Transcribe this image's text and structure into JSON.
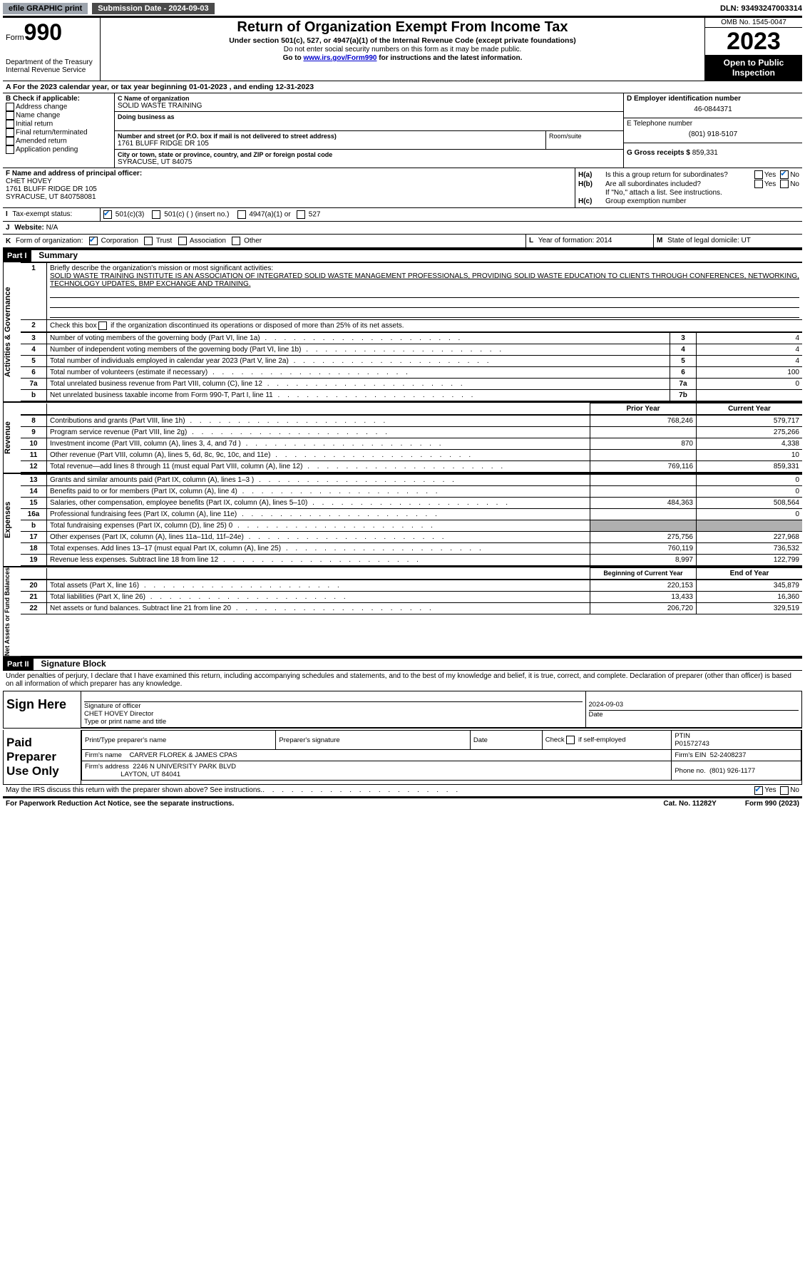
{
  "top": {
    "efile": "efile GRAPHIC print",
    "submission_label": "Submission Date - 2024-09-03",
    "dln": "DLN: 93493247003314"
  },
  "header": {
    "form_word": "Form",
    "form_num": "990",
    "dept": "Department of the Treasury",
    "irs": "Internal Revenue Service",
    "title": "Return of Organization Exempt From Income Tax",
    "sub": "Under section 501(c), 527, or 4947(a)(1) of the Internal Revenue Code (except private foundations)",
    "note1": "Do not enter social security numbers on this form as it may be made public.",
    "note2_pre": "Go to ",
    "note2_link": "www.irs.gov/Form990",
    "note2_post": " for instructions and the latest information.",
    "omb": "OMB No. 1545-0047",
    "year": "2023",
    "open": "Open to Public Inspection"
  },
  "line_a": "A  For the 2023 calendar year, or tax year beginning 01-01-2023   , and ending 12-31-2023",
  "box_b": {
    "label": "B Check if applicable:",
    "items": [
      "Address change",
      "Name change",
      "Initial return",
      "Final return/terminated",
      "Amended return",
      "Application pending"
    ]
  },
  "box_c": {
    "name_label": "C Name of organization",
    "name": "SOLID WASTE TRAINING",
    "dba_label": "Doing business as",
    "addr_label": "Number and street (or P.O. box if mail is not delivered to street address)",
    "addr": "1761 BLUFF RIDGE DR 105",
    "suite_label": "Room/suite",
    "city_label": "City or town, state or province, country, and ZIP or foreign postal code",
    "city": "SYRACUSE, UT  84075"
  },
  "box_d": {
    "ein_label": "D Employer identification number",
    "ein": "46-0844371",
    "phone_label": "E Telephone number",
    "phone": "(801) 918-5107",
    "gross_label": "G Gross receipts $",
    "gross": "859,331"
  },
  "box_f": {
    "label": "F  Name and address of principal officer:",
    "name": "CHET HOVEY",
    "addr1": "1761 BLUFF RIDGE DR 105",
    "addr2": "SYRACUSE, UT  840758081"
  },
  "box_h": {
    "a_label": "H(a)",
    "a_text": "Is this a group return for subordinates?",
    "b_label": "H(b)",
    "b_text": "Are all subordinates included?",
    "b_note": "If \"No,\" attach a list. See instructions.",
    "c_label": "H(c)",
    "c_text": "Group exemption number",
    "yes": "Yes",
    "no": "No"
  },
  "line_i": {
    "label": "I",
    "text": "Tax-exempt status:",
    "opts": [
      "501(c)(3)",
      "501(c) (  ) (insert no.)",
      "4947(a)(1) or",
      "527"
    ]
  },
  "line_j": {
    "label": "J",
    "text": "Website: ",
    "val": "N/A"
  },
  "line_k": {
    "label": "K",
    "text": "Form of organization:",
    "opts": [
      "Corporation",
      "Trust",
      "Association",
      "Other"
    ]
  },
  "line_l": {
    "label": "L",
    "text": "Year of formation: 2014"
  },
  "line_m": {
    "label": "M",
    "text": "State of legal domicile: UT"
  },
  "part1": {
    "header": "Part I",
    "title": "Summary",
    "side_ag": "Activities & Governance",
    "side_rev": "Revenue",
    "side_exp": "Expenses",
    "side_na": "Net Assets or Fund Balances",
    "q1": "Briefly describe the organization's mission or most significant activities:",
    "mission": "SOLID WASTE TRAINING INSTITUTE IS AN ASSOCIATION OF INTEGRATED SOLID WASTE MANAGEMENT PROFESSIONALS, PROVIDING SOLID WASTE EDUCATION TO CLIENTS THROUGH CONFERENCES, NETWORKING, TECHNOLOGY UPDATES, BMP EXCHANGE AND TRAINING.",
    "q2": "Check this box       if the organization discontinued its operations or disposed of more than 25% of its net assets.",
    "rows_ag": [
      {
        "n": "3",
        "t": "Number of voting members of the governing body (Part VI, line 1a)",
        "rn": "3",
        "v": "4"
      },
      {
        "n": "4",
        "t": "Number of independent voting members of the governing body (Part VI, line 1b)",
        "rn": "4",
        "v": "4"
      },
      {
        "n": "5",
        "t": "Total number of individuals employed in calendar year 2023 (Part V, line 2a)",
        "rn": "5",
        "v": "4"
      },
      {
        "n": "6",
        "t": "Total number of volunteers (estimate if necessary)",
        "rn": "6",
        "v": "100"
      },
      {
        "n": "7a",
        "t": "Total unrelated business revenue from Part VIII, column (C), line 12",
        "rn": "7a",
        "v": "0"
      },
      {
        "n": "b",
        "t": "Net unrelated business taxable income from Form 990-T, Part I, line 11",
        "rn": "7b",
        "v": ""
      }
    ],
    "col_prior": "Prior Year",
    "col_current": "Current Year",
    "rows_rev": [
      {
        "n": "8",
        "t": "Contributions and grants (Part VIII, line 1h)",
        "p": "768,246",
        "c": "579,717"
      },
      {
        "n": "9",
        "t": "Program service revenue (Part VIII, line 2g)",
        "p": "",
        "c": "275,266"
      },
      {
        "n": "10",
        "t": "Investment income (Part VIII, column (A), lines 3, 4, and 7d )",
        "p": "870",
        "c": "4,338"
      },
      {
        "n": "11",
        "t": "Other revenue (Part VIII, column (A), lines 5, 6d, 8c, 9c, 10c, and 11e)",
        "p": "",
        "c": "10"
      },
      {
        "n": "12",
        "t": "Total revenue—add lines 8 through 11 (must equal Part VIII, column (A), line 12)",
        "p": "769,116",
        "c": "859,331"
      }
    ],
    "rows_exp": [
      {
        "n": "13",
        "t": "Grants and similar amounts paid (Part IX, column (A), lines 1–3 )",
        "p": "",
        "c": "0"
      },
      {
        "n": "14",
        "t": "Benefits paid to or for members (Part IX, column (A), line 4)",
        "p": "",
        "c": "0"
      },
      {
        "n": "15",
        "t": "Salaries, other compensation, employee benefits (Part IX, column (A), lines 5–10)",
        "p": "484,363",
        "c": "508,564"
      },
      {
        "n": "16a",
        "t": "Professional fundraising fees (Part IX, column (A), line 11e)",
        "p": "",
        "c": "0"
      },
      {
        "n": "b",
        "t": "Total fundraising expenses (Part IX, column (D), line 25) 0",
        "p": "SHADE",
        "c": "SHADE"
      },
      {
        "n": "17",
        "t": "Other expenses (Part IX, column (A), lines 11a–11d, 11f–24e)",
        "p": "275,756",
        "c": "227,968"
      },
      {
        "n": "18",
        "t": "Total expenses. Add lines 13–17 (must equal Part IX, column (A), line 25)",
        "p": "760,119",
        "c": "736,532"
      },
      {
        "n": "19",
        "t": "Revenue less expenses. Subtract line 18 from line 12",
        "p": "8,997",
        "c": "122,799"
      }
    ],
    "col_begin": "Beginning of Current Year",
    "col_end": "End of Year",
    "rows_na": [
      {
        "n": "20",
        "t": "Total assets (Part X, line 16)",
        "p": "220,153",
        "c": "345,879"
      },
      {
        "n": "21",
        "t": "Total liabilities (Part X, line 26)",
        "p": "13,433",
        "c": "16,360"
      },
      {
        "n": "22",
        "t": "Net assets or fund balances. Subtract line 21 from line 20",
        "p": "206,720",
        "c": "329,519"
      }
    ]
  },
  "part2": {
    "header": "Part II",
    "title": "Signature Block",
    "decl": "Under penalties of perjury, I declare that I have examined this return, including accompanying schedules and statements, and to the best of my knowledge and belief, it is true, correct, and complete. Declaration of preparer (other than officer) is based on all information of which preparer has any knowledge.",
    "sign_here": "Sign Here",
    "sig_officer_label": "Signature of officer",
    "sig_date": "2024-09-03",
    "officer_name": "CHET HOVEY  Director",
    "officer_title_label": "Type or print name and title",
    "date_label": "Date",
    "paid": "Paid Preparer Use Only",
    "prep_name_label": "Print/Type preparer's name",
    "prep_sig_label": "Preparer's signature",
    "self_emp": "Check        if self-employed",
    "ptin_label": "PTIN",
    "ptin": "P01572743",
    "firm_name_label": "Firm's name",
    "firm_name": "CARVER FLOREK & JAMES CPAS",
    "firm_ein_label": "Firm's EIN",
    "firm_ein": "52-2408237",
    "firm_addr_label": "Firm's address",
    "firm_addr1": "2246 N UNIVERSITY PARK BLVD",
    "firm_addr2": "LAYTON, UT  84041",
    "phone_label": "Phone no.",
    "phone": "(801) 926-1177",
    "discuss": "May the IRS discuss this return with the preparer shown above? See instructions."
  },
  "footer": {
    "pra": "For Paperwork Reduction Act Notice, see the separate instructions.",
    "cat": "Cat. No. 11282Y",
    "form": "Form 990 (2023)"
  }
}
